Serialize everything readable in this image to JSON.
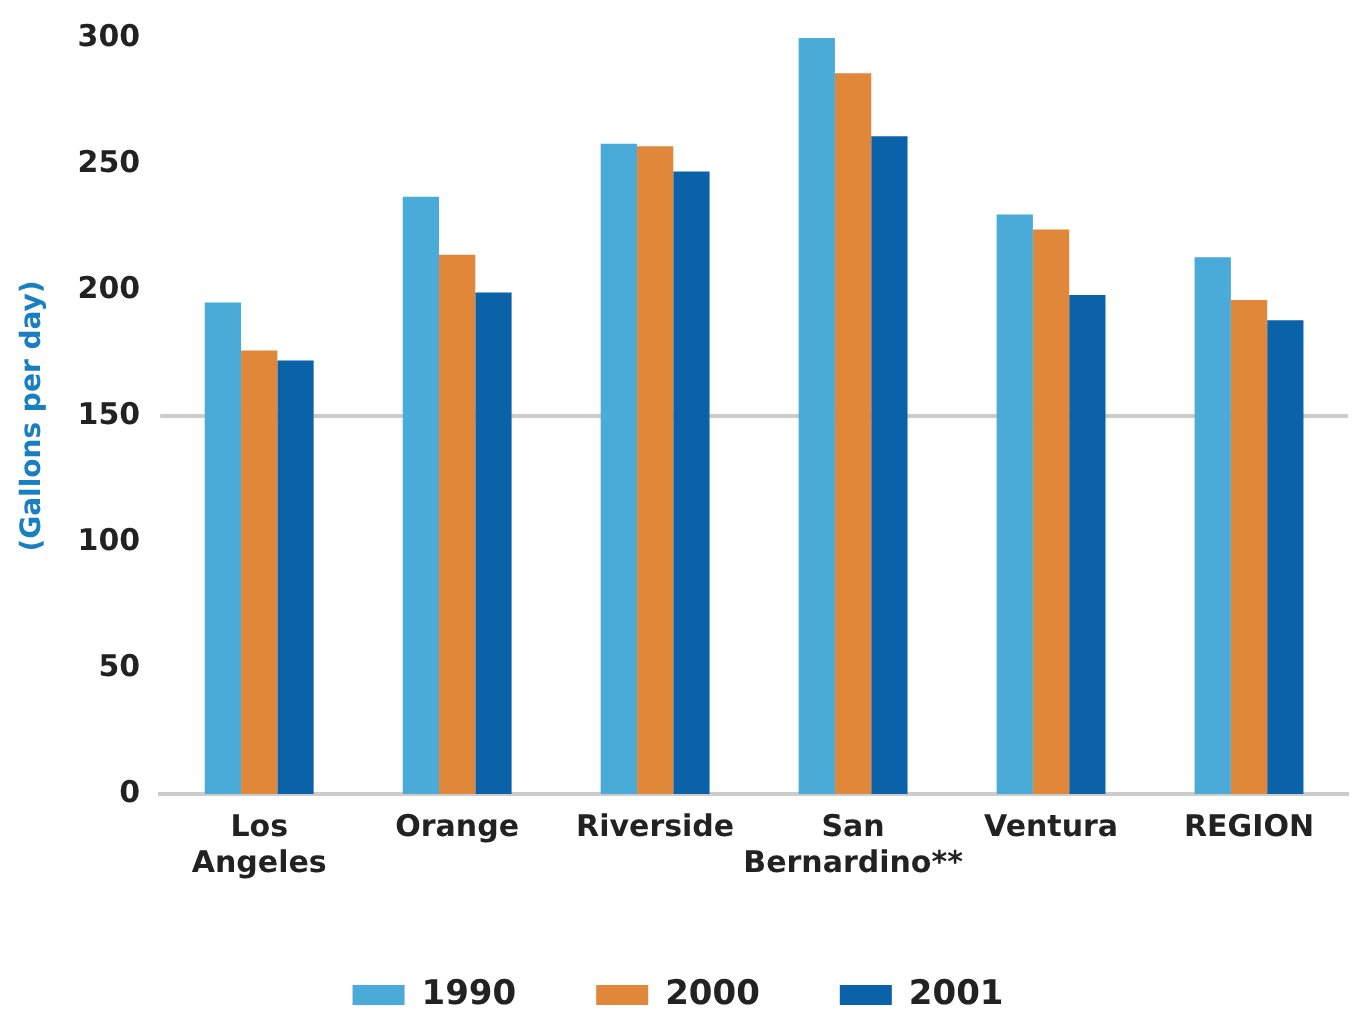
{
  "chart_data": {
    "type": "bar",
    "ylabel": "(Gallons per day)",
    "categories": [
      "Los Angeles",
      "Orange",
      "Riverside",
      "San Bernardino**",
      "Ventura",
      "REGION"
    ],
    "series": [
      {
        "name": "1990",
        "color": "#4aaad8",
        "values": [
          195,
          237,
          258,
          300,
          230,
          213
        ]
      },
      {
        "name": "2000",
        "color": "#e0873a",
        "values": [
          176,
          214,
          257,
          286,
          224,
          196
        ]
      },
      {
        "name": "2001",
        "color": "#0a62a8",
        "values": [
          172,
          199,
          247,
          261,
          198,
          188
        ]
      }
    ],
    "ylim": [
      0,
      300
    ],
    "yticks": [
      0,
      50,
      100,
      150,
      200,
      250,
      300
    ],
    "grid": false,
    "legend": "bottom",
    "ref_lines": [
      {
        "axis": "y",
        "value": 150,
        "color": "#cccccc"
      }
    ]
  }
}
